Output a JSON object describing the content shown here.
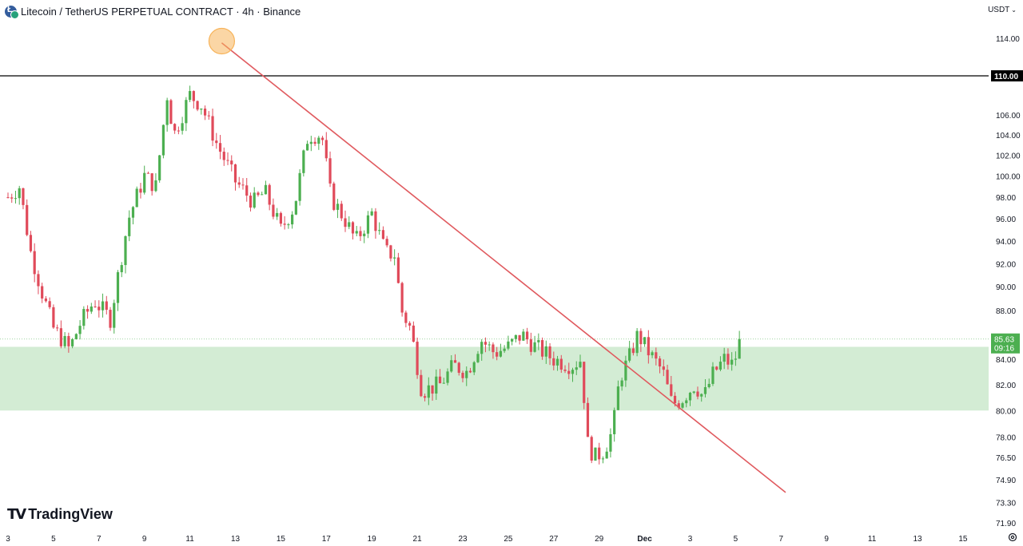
{
  "header": {
    "symbol": "Litecoin / TetherUS PERPETUAL CONTRACT · 4h · Binance",
    "currency": "USDT"
  },
  "logo": {
    "text": "TradingView"
  },
  "colors": {
    "up": "#4caf50",
    "down": "#e04a5a",
    "trendline": "#e05a5f",
    "zone": "#d3ecd4",
    "resistance": "#000000",
    "highlight": "#f7b45b",
    "price_badge": "#4caf50"
  },
  "chart_data": {
    "type": "candlestick",
    "title": "Litecoin / TetherUS PERPETUAL CONTRACT · 4h · Binance",
    "y_axis": {
      "scale": "log",
      "ylim": [
        71.9,
        116.0
      ],
      "ticks": [
        "114.00",
        "110.00",
        "106.00",
        "104.00",
        "102.00",
        "100.00",
        "98.00",
        "96.00",
        "94.00",
        "92.00",
        "90.00",
        "88.00",
        "84.00",
        "82.00",
        "80.00",
        "78.00",
        "76.50",
        "74.90",
        "73.30",
        "71.90"
      ]
    },
    "x_axis": {
      "ticks": [
        "3",
        "5",
        "7",
        "9",
        "11",
        "13",
        "15",
        "17",
        "19",
        "21",
        "23",
        "25",
        "27",
        "29",
        "Dec",
        "3",
        "5",
        "7",
        "9",
        "11",
        "13",
        "15"
      ],
      "start_label_index": 0,
      "candles_per_day": 6
    },
    "horizontal_line": {
      "value": 110.0,
      "label": "110.00"
    },
    "support_zone": {
      "from": 80.0,
      "to": 85.0
    },
    "last_price": {
      "value": 85.63,
      "label": "85.63",
      "countdown": "09:16"
    },
    "trendline": {
      "from": {
        "day": 9.4,
        "price": 113.5
      },
      "to": {
        "day": 34.2,
        "price": 74.0
      }
    },
    "highlight_marker": {
      "day": 9.4,
      "price": 113.7
    },
    "close_path": [
      [
        0,
        98.0
      ],
      [
        0.5,
        99.0
      ],
      [
        1.0,
        93.0
      ],
      [
        1.5,
        89.5
      ],
      [
        2.0,
        86.5
      ],
      [
        2.7,
        84.8
      ],
      [
        3.2,
        87.0
      ],
      [
        3.8,
        88.8
      ],
      [
        4.5,
        87.3
      ],
      [
        4.8,
        90.5
      ],
      [
        5.3,
        96.0
      ],
      [
        6.0,
        100.0
      ],
      [
        6.5,
        99.0
      ],
      [
        7.0,
        108.0
      ],
      [
        7.3,
        104.0
      ],
      [
        8.0,
        108.0
      ],
      [
        8.5,
        107.0
      ],
      [
        9.2,
        103.0
      ],
      [
        10.0,
        99.5
      ],
      [
        10.8,
        97.5
      ],
      [
        11.3,
        98.5
      ],
      [
        12.0,
        95.0
      ],
      [
        12.6,
        97.2
      ],
      [
        13.2,
        104.0
      ],
      [
        13.8,
        104.0
      ],
      [
        14.2,
        98.0
      ],
      [
        14.8,
        96.0
      ],
      [
        15.3,
        94.0
      ],
      [
        16.0,
        96.5
      ],
      [
        16.6,
        93.0
      ],
      [
        17.0,
        92.8
      ],
      [
        17.3,
        88.0
      ],
      [
        17.7,
        86.5
      ],
      [
        18.2,
        81.5
      ],
      [
        19.0,
        82.0
      ],
      [
        19.6,
        83.5
      ],
      [
        20.2,
        83.0
      ],
      [
        20.8,
        85.6
      ],
      [
        21.4,
        84.5
      ],
      [
        22.0,
        85.0
      ],
      [
        22.6,
        86.0
      ],
      [
        23.2,
        85.0
      ],
      [
        24.0,
        84.0
      ],
      [
        24.8,
        83.5
      ],
      [
        25.2,
        84.0
      ],
      [
        25.5,
        77.5
      ],
      [
        25.8,
        76.5
      ],
      [
        26.2,
        77.0
      ],
      [
        26.6,
        78.5
      ],
      [
        26.9,
        82.5
      ],
      [
        27.3,
        84.0
      ],
      [
        27.7,
        86.0
      ],
      [
        28.2,
        84.5
      ],
      [
        28.8,
        83.0
      ],
      [
        29.2,
        80.5
      ],
      [
        29.6,
        80.8
      ],
      [
        30.2,
        82.0
      ],
      [
        30.6,
        81.0
      ],
      [
        31.0,
        82.8
      ],
      [
        31.5,
        84.0
      ],
      [
        31.9,
        83.5
      ],
      [
        32.2,
        85.6
      ]
    ]
  }
}
